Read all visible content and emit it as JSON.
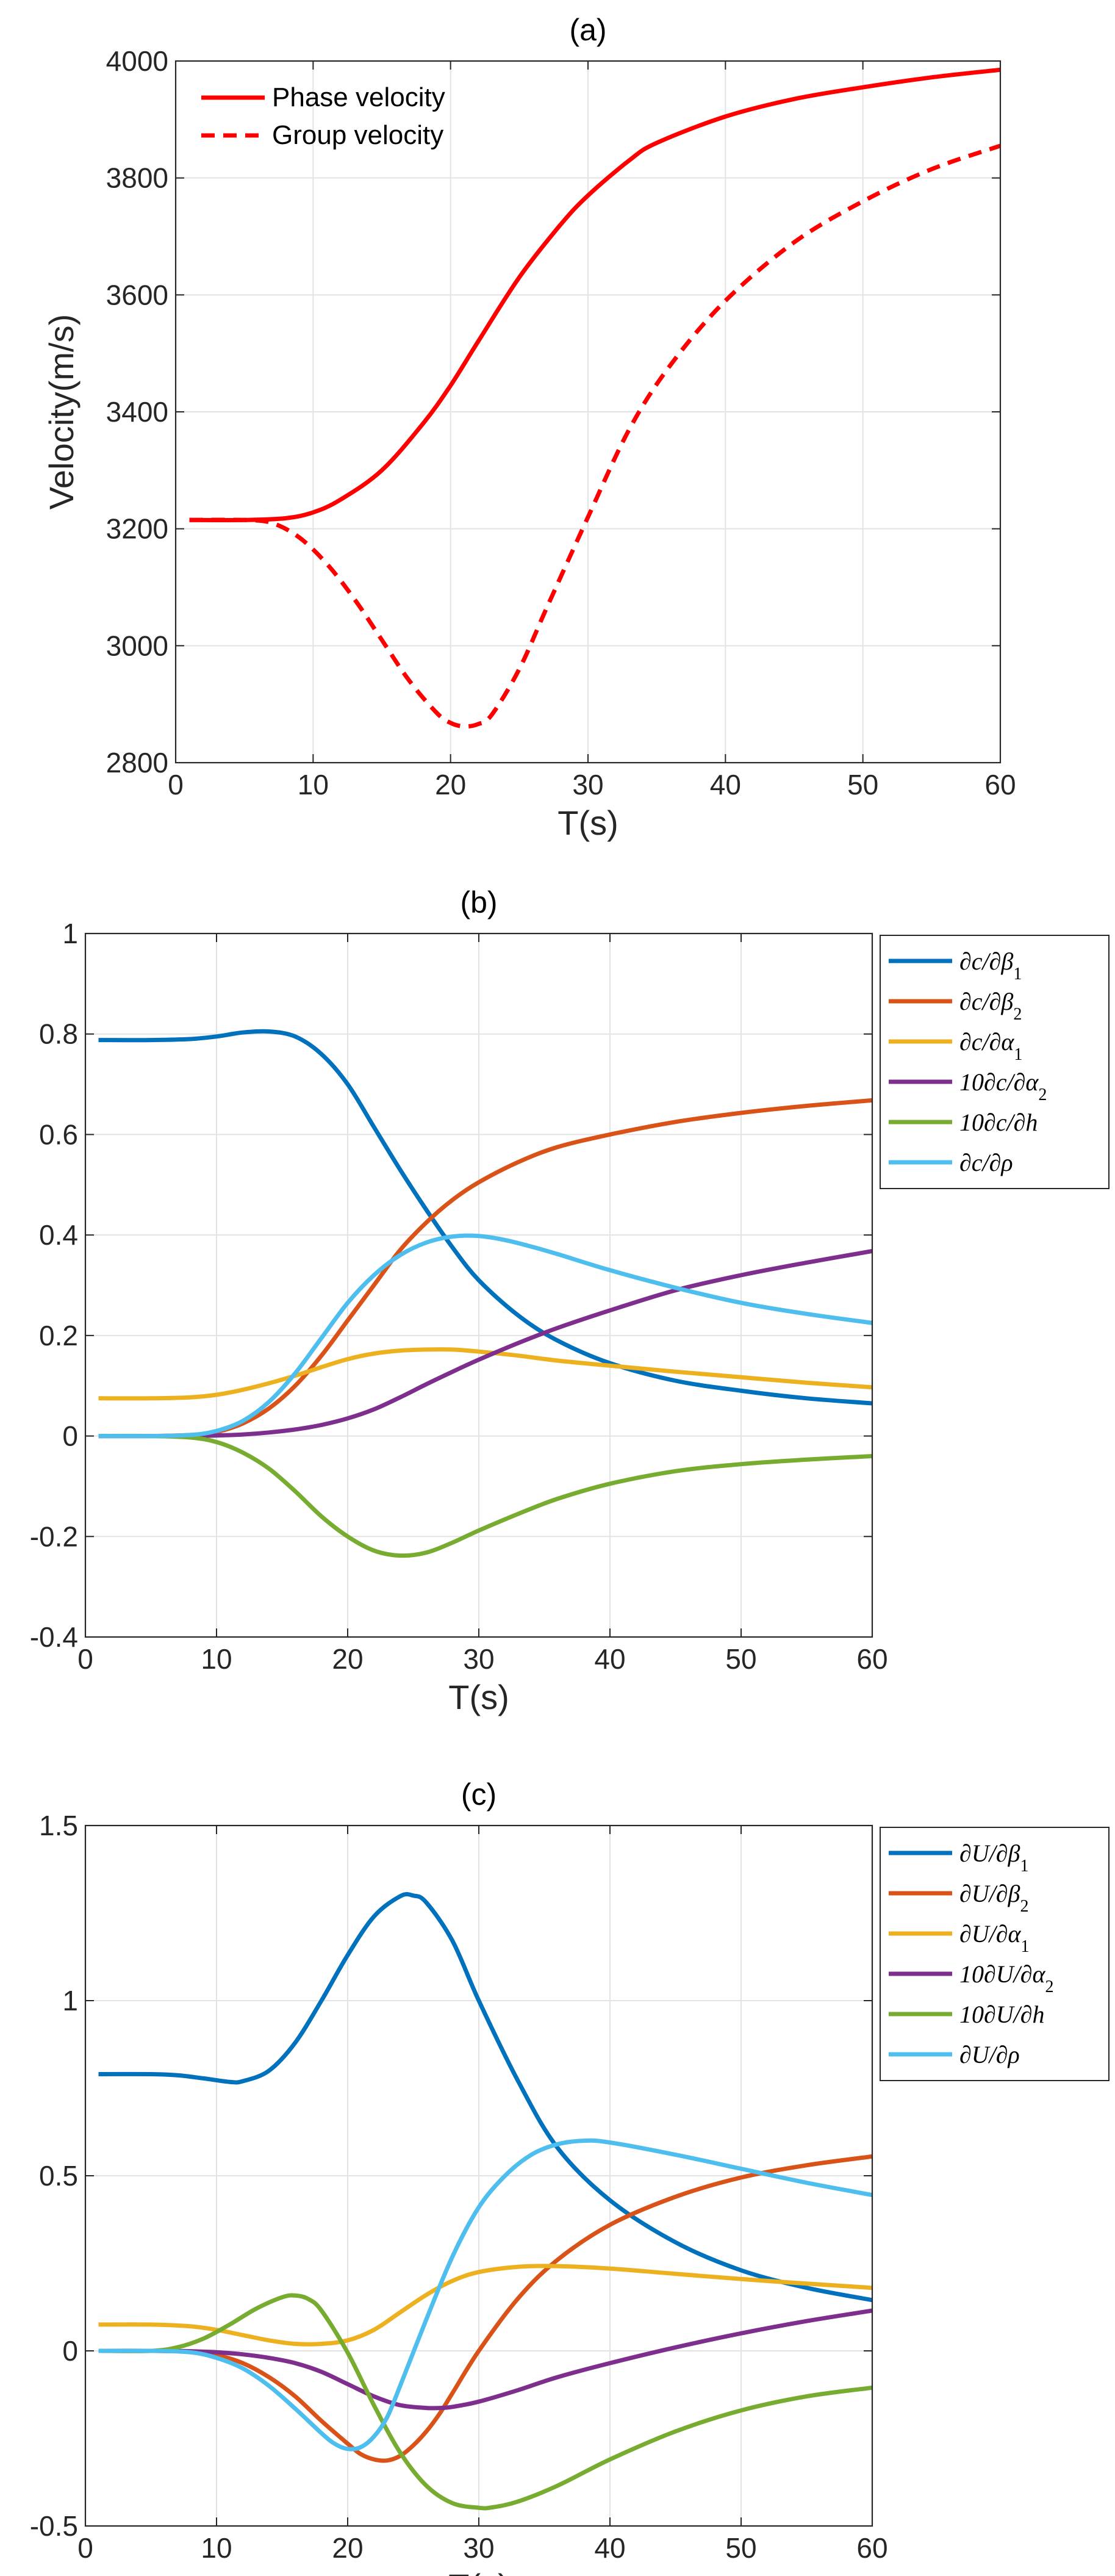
{
  "chart_data": [
    {
      "id": "a",
      "type": "line",
      "title": "(a)",
      "xlabel": "T(s)",
      "ylabel": "Velocity(m/s)",
      "xlim": [
        0,
        60
      ],
      "ylim": [
        2800,
        4000
      ],
      "xticks": [
        0,
        10,
        20,
        30,
        40,
        50,
        60
      ],
      "yticks": [
        2800,
        3000,
        3200,
        3400,
        3600,
        3800,
        4000
      ],
      "xtick_labels": [
        "0",
        "10",
        "20",
        "30",
        "40",
        "50",
        "60"
      ],
      "ytick_labels": [
        "2800",
        "3000",
        "3200",
        "3400",
        "3600",
        "3800",
        "4000"
      ],
      "grid": true,
      "legend_position": "top-left",
      "series": [
        {
          "name": "Phase velocity",
          "color": "#ff0000",
          "dash": "solid",
          "x": [
            1,
            5,
            8,
            10,
            12,
            15,
            18,
            20,
            22,
            25,
            28,
            30,
            33,
            35,
            40,
            45,
            50,
            55,
            60
          ],
          "y": [
            3215,
            3215,
            3218,
            3228,
            3250,
            3300,
            3380,
            3445,
            3520,
            3630,
            3720,
            3770,
            3830,
            3860,
            3905,
            3935,
            3955,
            3972,
            3985
          ]
        },
        {
          "name": "Group velocity",
          "color": "#ff0000",
          "dash": "dashed",
          "x": [
            1,
            5,
            7,
            9,
            11,
            13,
            15,
            17,
            19,
            20,
            21,
            22,
            23,
            25,
            27,
            30,
            33,
            36,
            40,
            45,
            50,
            55,
            60
          ],
          "y": [
            3215,
            3215,
            3210,
            3185,
            3140,
            3080,
            3010,
            2940,
            2885,
            2868,
            2862,
            2866,
            2882,
            2960,
            3065,
            3220,
            3370,
            3480,
            3590,
            3690,
            3760,
            3815,
            3855
          ]
        }
      ]
    },
    {
      "id": "b",
      "type": "line",
      "title": "(b)",
      "xlabel": "T(s)",
      "ylabel": "",
      "xlim": [
        0,
        60
      ],
      "ylim": [
        -0.4,
        1
      ],
      "xticks": [
        0,
        10,
        20,
        30,
        40,
        50,
        60
      ],
      "yticks": [
        -0.4,
        -0.2,
        0,
        0.2,
        0.4,
        0.6,
        0.8,
        1
      ],
      "xtick_labels": [
        "0",
        "10",
        "20",
        "30",
        "40",
        "50",
        "60"
      ],
      "ytick_labels": [
        "-0.4",
        "-0.2",
        "0",
        "0.2",
        "0.4",
        "0.6",
        "0.8",
        "1"
      ],
      "grid": true,
      "legend_position": "outside-right",
      "series": [
        {
          "name": "∂c/∂β₁",
          "color": "#0072bd",
          "x": [
            1,
            5,
            8,
            10,
            12,
            14,
            16,
            18,
            20,
            22,
            24,
            26,
            28,
            30,
            33,
            36,
            40,
            45,
            50,
            55,
            60
          ],
          "y": [
            0.788,
            0.788,
            0.79,
            0.795,
            0.803,
            0.805,
            0.795,
            0.76,
            0.7,
            0.615,
            0.53,
            0.45,
            0.375,
            0.31,
            0.24,
            0.19,
            0.145,
            0.11,
            0.09,
            0.075,
            0.065
          ]
        },
        {
          "name": "∂c/∂β₂",
          "color": "#d95319",
          "x": [
            1,
            5,
            8,
            10,
            12,
            14,
            16,
            18,
            20,
            22,
            24,
            26,
            28,
            30,
            33,
            36,
            40,
            45,
            50,
            55,
            60
          ],
          "y": [
            0,
            0,
            0.002,
            0.008,
            0.025,
            0.055,
            0.1,
            0.16,
            0.23,
            0.3,
            0.37,
            0.425,
            0.47,
            0.505,
            0.545,
            0.575,
            0.6,
            0.625,
            0.643,
            0.657,
            0.668
          ]
        },
        {
          "name": "∂c/∂α₁",
          "color": "#edb120",
          "x": [
            1,
            5,
            8,
            10,
            12,
            14,
            16,
            18,
            20,
            22,
            24,
            26,
            28,
            30,
            33,
            36,
            40,
            45,
            50,
            55,
            60
          ],
          "y": [
            0.075,
            0.075,
            0.077,
            0.082,
            0.092,
            0.105,
            0.12,
            0.137,
            0.153,
            0.164,
            0.17,
            0.172,
            0.172,
            0.168,
            0.16,
            0.15,
            0.14,
            0.128,
            0.117,
            0.106,
            0.097
          ]
        },
        {
          "name": "10∂c/∂α₂",
          "color": "#7e2f8e",
          "x": [
            1,
            5,
            8,
            10,
            12,
            14,
            16,
            18,
            20,
            22,
            24,
            26,
            28,
            30,
            33,
            36,
            40,
            45,
            50,
            55,
            60
          ],
          "y": [
            0,
            0,
            0,
            0.001,
            0.003,
            0.007,
            0.013,
            0.022,
            0.035,
            0.053,
            0.077,
            0.103,
            0.128,
            0.152,
            0.185,
            0.215,
            0.25,
            0.29,
            0.32,
            0.345,
            0.368
          ]
        },
        {
          "name": "10∂c/∂h",
          "color": "#77ac30",
          "x": [
            1,
            5,
            8,
            10,
            12,
            14,
            16,
            18,
            20,
            22,
            24,
            26,
            28,
            30,
            33,
            36,
            40,
            45,
            50,
            55,
            60
          ],
          "y": [
            0,
            0,
            -0.003,
            -0.012,
            -0.033,
            -0.065,
            -0.11,
            -0.16,
            -0.2,
            -0.228,
            -0.238,
            -0.232,
            -0.212,
            -0.188,
            -0.155,
            -0.125,
            -0.095,
            -0.07,
            -0.056,
            -0.047,
            -0.04
          ]
        },
        {
          "name": "∂c/∂ρ",
          "color": "#4dbeee",
          "x": [
            1,
            5,
            8,
            10,
            12,
            14,
            16,
            18,
            20,
            22,
            24,
            26,
            28,
            30,
            32,
            34,
            36,
            40,
            45,
            50,
            55,
            60
          ],
          "y": [
            0,
            0,
            0.002,
            0.01,
            0.03,
            0.068,
            0.125,
            0.195,
            0.265,
            0.32,
            0.36,
            0.385,
            0.397,
            0.398,
            0.39,
            0.377,
            0.362,
            0.33,
            0.295,
            0.265,
            0.243,
            0.225
          ]
        }
      ]
    },
    {
      "id": "c",
      "type": "line",
      "title": "(c)",
      "xlabel": "T(s)",
      "ylabel": "",
      "xlim": [
        0,
        60
      ],
      "ylim": [
        -0.5,
        1.5
      ],
      "xticks": [
        0,
        10,
        20,
        30,
        40,
        50,
        60
      ],
      "yticks": [
        -0.5,
        0,
        0.5,
        1,
        1.5
      ],
      "xtick_labels": [
        "0",
        "10",
        "20",
        "30",
        "40",
        "50",
        "60"
      ],
      "ytick_labels": [
        "-0.5",
        "0",
        "0.5",
        "1",
        "1.5"
      ],
      "grid": true,
      "legend_position": "outside-right",
      "series": [
        {
          "name": "∂U/∂β₁",
          "color": "#0072bd",
          "x": [
            1,
            5,
            7,
            9,
            11,
            12,
            14,
            16,
            18,
            20,
            22,
            24,
            25,
            26,
            28,
            30,
            33,
            36,
            40,
            45,
            50,
            55,
            60
          ],
          "y": [
            0.79,
            0.79,
            0.787,
            0.778,
            0.768,
            0.77,
            0.8,
            0.88,
            1.0,
            1.13,
            1.24,
            1.298,
            1.3,
            1.28,
            1.17,
            1.0,
            0.77,
            0.58,
            0.43,
            0.31,
            0.23,
            0.18,
            0.145
          ]
        },
        {
          "name": "∂U/∂β₂",
          "color": "#d95319",
          "x": [
            1,
            5,
            8,
            10,
            12,
            14,
            16,
            18,
            20,
            21,
            22,
            23,
            24,
            25,
            26,
            27,
            28,
            30,
            33,
            36,
            40,
            45,
            50,
            55,
            60
          ],
          "y": [
            0,
            0,
            -0.002,
            -0.012,
            -0.035,
            -0.075,
            -0.13,
            -0.2,
            -0.265,
            -0.295,
            -0.31,
            -0.313,
            -0.3,
            -0.27,
            -0.23,
            -0.18,
            -0.12,
            0.0,
            0.15,
            0.26,
            0.36,
            0.44,
            0.495,
            0.53,
            0.555
          ]
        },
        {
          "name": "∂U/∂α₁",
          "color": "#edb120",
          "x": [
            1,
            5,
            8,
            10,
            12,
            14,
            16,
            18,
            20,
            22,
            24,
            26,
            28,
            30,
            33,
            36,
            40,
            45,
            50,
            55,
            60
          ],
          "y": [
            0.075,
            0.075,
            0.07,
            0.06,
            0.045,
            0.03,
            0.02,
            0.02,
            0.03,
            0.06,
            0.11,
            0.16,
            0.2,
            0.225,
            0.24,
            0.242,
            0.235,
            0.22,
            0.205,
            0.192,
            0.18
          ]
        },
        {
          "name": "10∂U/∂α₂",
          "color": "#7e2f8e",
          "x": [
            1,
            5,
            8,
            10,
            12,
            14,
            16,
            18,
            20,
            22,
            24,
            26,
            27,
            28,
            30,
            33,
            36,
            40,
            45,
            50,
            55,
            60
          ],
          "y": [
            0,
            0,
            -0.001,
            -0.004,
            -0.01,
            -0.02,
            -0.035,
            -0.06,
            -0.095,
            -0.13,
            -0.155,
            -0.163,
            -0.163,
            -0.16,
            -0.145,
            -0.112,
            -0.075,
            -0.035,
            0.01,
            0.05,
            0.085,
            0.115
          ]
        },
        {
          "name": "10∂U/∂h",
          "color": "#77ac30",
          "x": [
            1,
            5,
            7,
            9,
            11,
            13,
            15,
            16,
            17,
            18,
            20,
            22,
            24,
            26,
            28,
            30,
            31,
            33,
            36,
            40,
            45,
            50,
            55,
            60
          ],
          "y": [
            0,
            0,
            0.01,
            0.035,
            0.075,
            0.12,
            0.153,
            0.158,
            0.148,
            0.115,
            -0.005,
            -0.155,
            -0.29,
            -0.385,
            -0.435,
            -0.448,
            -0.447,
            -0.43,
            -0.385,
            -0.31,
            -0.23,
            -0.17,
            -0.13,
            -0.105
          ]
        },
        {
          "name": "∂U/∂ρ",
          "color": "#4dbeee",
          "x": [
            1,
            5,
            8,
            10,
            12,
            14,
            16,
            18,
            19,
            20,
            21,
            22,
            23,
            24,
            26,
            28,
            30,
            32,
            34,
            36,
            38,
            40,
            45,
            50,
            55,
            60
          ],
          "y": [
            0,
            0,
            -0.004,
            -0.02,
            -0.05,
            -0.1,
            -0.165,
            -0.235,
            -0.265,
            -0.28,
            -0.275,
            -0.245,
            -0.19,
            -0.1,
            0.09,
            0.27,
            0.41,
            0.5,
            0.56,
            0.59,
            0.6,
            0.595,
            0.56,
            0.52,
            0.48,
            0.445
          ]
        }
      ]
    }
  ]
}
